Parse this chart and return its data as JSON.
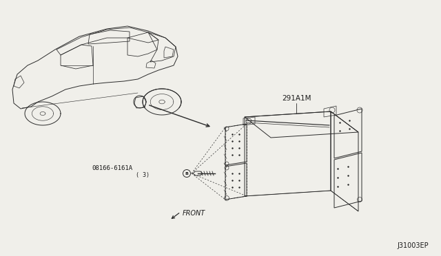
{
  "bg_color": "#f0efea",
  "diagram_id": "J31003EP",
  "part_label_1": "291A1M",
  "part_label_2": "08166-6161A",
  "part_label_2_sub": "( 3)",
  "front_label": "FRONT",
  "line_color": "#2a2a2a",
  "text_color": "#1a1a1a",
  "car_color": "#2a2a2a",
  "box_color": "#2a2a2a"
}
